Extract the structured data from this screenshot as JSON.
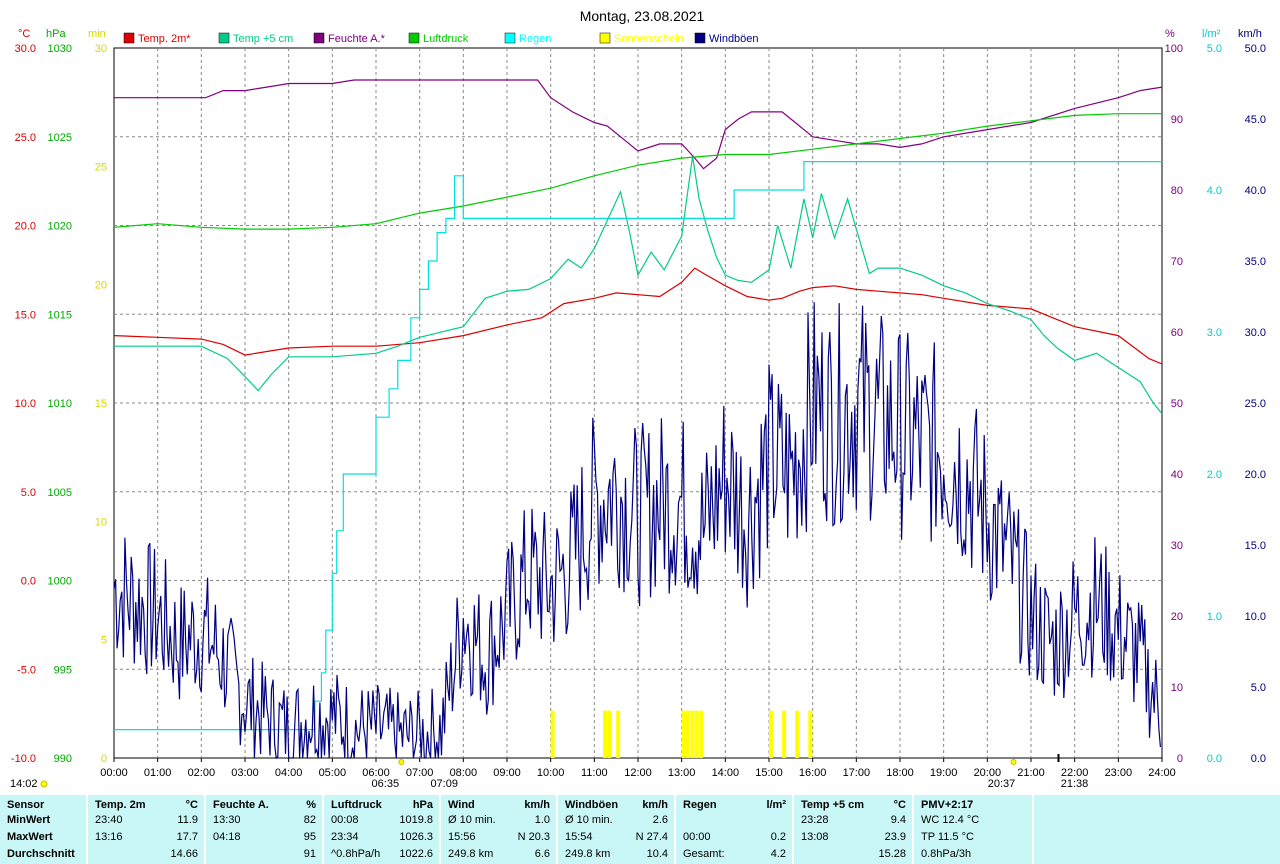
{
  "title": "Montag, 23.08.2021",
  "axes": {
    "temp": {
      "unit": "°C",
      "min": -10,
      "max": 30,
      "ticks": [
        "30.0",
        "25.0",
        "20.0",
        "15.0",
        "10.0",
        "5.0",
        "0.0",
        "-5.0",
        "-10.0"
      ],
      "color": "#ff0000"
    },
    "pressure": {
      "unit": "hPa",
      "min": 990,
      "max": 1030,
      "ticks": [
        "1030",
        "1025",
        "1020",
        "1015",
        "1010",
        "1005",
        "1000",
        "995",
        "990"
      ],
      "color": "#00aa00"
    },
    "sunshine": {
      "unit": "min",
      "min": 0,
      "max": 30,
      "ticks": [
        "30",
        "25",
        "20",
        "15",
        "10",
        "5",
        "0"
      ],
      "color": "#e0e000"
    },
    "humidity": {
      "unit": "%",
      "min": 0,
      "max": 100,
      "ticks": [
        "100",
        "90",
        "80",
        "70",
        "60",
        "50",
        "40",
        "30",
        "20",
        "10",
        "0"
      ],
      "color": "#800080"
    },
    "rain": {
      "unit": "l/m²",
      "min": 0,
      "max": 5,
      "ticks": [
        "5.0",
        "4.0",
        "3.0",
        "2.0",
        "1.0",
        "0.0"
      ],
      "color": "#00cccc"
    },
    "wind": {
      "unit": "km/h",
      "min": 0,
      "max": 50,
      "ticks": [
        "50.0",
        "45.0",
        "40.0",
        "35.0",
        "30.0",
        "25.0",
        "20.0",
        "15.0",
        "10.0",
        "5.0",
        "0.0"
      ],
      "color": "#000000"
    }
  },
  "x_ticks": [
    "00:00",
    "01:00",
    "02:00",
    "03:00",
    "04:00",
    "05:00",
    "06:00",
    "07:00",
    "08:00",
    "09:00",
    "10:00",
    "11:00",
    "12:00",
    "13:00",
    "14:00",
    "15:00",
    "16:00",
    "17:00",
    "18:00",
    "19:00",
    "20:00",
    "21:00",
    "22:00",
    "23:00",
    "24:00"
  ],
  "x_annotations": {
    "sunrise": "06:35",
    "sunrise_end": "07:09",
    "sunset": "20:37",
    "moon": "21:38",
    "moon_left": "14:02"
  },
  "legend": [
    {
      "label": "Temp. 2m*",
      "color": "#dd0000"
    },
    {
      "label": "Temp +5 cm",
      "color": "#00cc88"
    },
    {
      "label": "Feuchte A.*",
      "color": "#800080"
    },
    {
      "label": "Luftdruck",
      "color": "#00cc00"
    },
    {
      "label": "Regen",
      "color": "#00ffff"
    },
    {
      "label": "Sonnenschein",
      "color": "#ffff00"
    },
    {
      "label": "Windböen",
      "color": "#000080"
    }
  ],
  "chart_data": {
    "type": "line",
    "x_unit": "hours",
    "series": [
      {
        "name": "Temp. 2m*",
        "axis": "temp",
        "color": "#dd0000",
        "x": [
          0,
          1,
          2,
          2.5,
          3,
          3.5,
          4,
          5,
          6,
          7,
          8,
          9,
          9.8,
          10.3,
          11,
          11.5,
          12,
          12.5,
          13,
          13.3,
          13.5,
          14,
          14.5,
          15,
          15.3,
          15.7,
          16,
          16.5,
          17,
          17.5,
          18,
          18.5,
          19,
          20,
          21,
          21.5,
          22,
          23,
          23.7,
          24
        ],
        "y": [
          13.8,
          13.7,
          13.6,
          13.3,
          12.7,
          12.9,
          13.1,
          13.2,
          13.2,
          13.4,
          13.8,
          14.4,
          14.8,
          15.6,
          15.9,
          16.2,
          16.1,
          16.0,
          16.8,
          17.6,
          17.3,
          16.6,
          16.0,
          15.8,
          15.9,
          16.3,
          16.5,
          16.6,
          16.4,
          16.3,
          16.2,
          16.1,
          15.9,
          15.5,
          15.3,
          14.8,
          14.3,
          13.8,
          12.5,
          12.2
        ]
      },
      {
        "name": "Temp +5 cm",
        "axis": "temp",
        "color": "#00cc88",
        "x": [
          0,
          1,
          2,
          2.6,
          3,
          3.3,
          3.6,
          4,
          5,
          6,
          6.5,
          7,
          8,
          8.5,
          9,
          9.5,
          10,
          10.4,
          10.7,
          11,
          11.3,
          11.6,
          11.8,
          12,
          12.3,
          12.6,
          13,
          13.1,
          13.25,
          13.4,
          13.6,
          13.8,
          14,
          14.3,
          14.6,
          15,
          15.2,
          15.5,
          15.8,
          16,
          16.2,
          16.5,
          16.8,
          17,
          17.3,
          17.5,
          18,
          18.5,
          19,
          19.5,
          20,
          20.5,
          21,
          21.3,
          21.6,
          22,
          22.5,
          23,
          23.5,
          23.8,
          24
        ],
        "y": [
          13.2,
          13.2,
          13.2,
          12.5,
          11.5,
          10.7,
          11.6,
          12.6,
          12.6,
          12.8,
          13.2,
          13.7,
          14.3,
          15.9,
          16.3,
          16.4,
          17.0,
          18.1,
          17.6,
          18.7,
          20.3,
          21.9,
          19.7,
          17.2,
          18.5,
          17.5,
          19.4,
          21.2,
          23.9,
          21.5,
          19.7,
          18.2,
          17.2,
          16.9,
          16.8,
          17.5,
          20.0,
          17.6,
          21.5,
          19.3,
          21.8,
          19.3,
          21.5,
          19.8,
          17.3,
          17.6,
          17.6,
          17.2,
          16.6,
          16.2,
          15.6,
          15.2,
          14.7,
          13.8,
          13.1,
          12.4,
          12.8,
          12.0,
          11.2,
          10.0,
          9.4
        ]
      },
      {
        "name": "Feuchte A.*",
        "axis": "humidity",
        "color": "#800080",
        "x": [
          0,
          1.5,
          2.1,
          2.5,
          3,
          3.5,
          4,
          5,
          5.5,
          6,
          7,
          8,
          9,
          9.7,
          10,
          10.5,
          11,
          11.3,
          11.7,
          12,
          12.5,
          13,
          13.3,
          13.5,
          13.8,
          14,
          14.3,
          14.6,
          15,
          15.3,
          15.6,
          16,
          16.5,
          17,
          17.5,
          18,
          18.5,
          19,
          20,
          21,
          22,
          23,
          23.5,
          24
        ],
        "y": [
          93,
          93,
          93,
          94,
          94,
          94.5,
          95,
          95,
          95.5,
          95.5,
          95.5,
          95.5,
          95.5,
          95.5,
          93,
          91,
          89.5,
          89,
          87,
          85.5,
          86.5,
          86.5,
          84.5,
          83,
          84.5,
          88.5,
          90,
          91,
          91,
          91,
          89.5,
          87.5,
          87,
          86.5,
          86.5,
          86,
          86.5,
          87.5,
          88.5,
          89.5,
          91.5,
          93,
          94,
          94.5
        ]
      },
      {
        "name": "Luftdruck",
        "axis": "pressure",
        "color": "#00cc00",
        "x": [
          0,
          1,
          2,
          3,
          4,
          5,
          6,
          7,
          8,
          9,
          10,
          11,
          12,
          13,
          14,
          15,
          16,
          17,
          18,
          19,
          20,
          21,
          22,
          23,
          24
        ],
        "y": [
          1019.9,
          1020.1,
          1019.9,
          1019.8,
          1019.8,
          1019.9,
          1020.1,
          1020.7,
          1021.1,
          1021.6,
          1022.1,
          1022.8,
          1023.4,
          1023.8,
          1024.0,
          1024.0,
          1024.3,
          1024.6,
          1024.9,
          1025.2,
          1025.6,
          1025.9,
          1026.2,
          1026.3,
          1026.3
        ]
      },
      {
        "name": "Regen",
        "axis": "rain",
        "color": "#00e0e0",
        "step": true,
        "x": [
          0,
          4.6,
          4.75,
          4.85,
          5.0,
          5.1,
          5.25,
          5.5,
          5.8,
          6.0,
          6.3,
          6.5,
          6.8,
          7.0,
          7.2,
          7.4,
          7.6,
          7.8,
          8.0,
          8.3,
          8.5,
          9,
          10,
          11,
          12,
          13,
          14,
          14.2,
          14.5,
          15,
          15.5,
          15.8,
          16,
          17,
          18,
          19,
          20,
          21,
          22,
          23,
          24
        ],
        "y": [
          0.2,
          0.4,
          0.6,
          0.9,
          1.3,
          1.6,
          2.0,
          2.0,
          2.0,
          2.4,
          2.6,
          2.8,
          3.1,
          3.3,
          3.5,
          3.7,
          3.8,
          4.1,
          3.8,
          3.8,
          3.8,
          3.8,
          3.8,
          3.8,
          3.8,
          3.8,
          3.8,
          4.0,
          4.0,
          4.0,
          4.0,
          4.2,
          4.2,
          4.2,
          4.2,
          4.2,
          4.2,
          4.2,
          4.2,
          4.2,
          4.2
        ]
      },
      {
        "name": "Windböen",
        "axis": "wind",
        "color": "#000080",
        "noisy": true,
        "x": [
          0,
          0.5,
          1,
          1.5,
          2,
          2.5,
          3,
          3.5,
          4,
          4.5,
          5,
          5.5,
          6,
          6.5,
          7,
          7.5,
          8,
          8.5,
          9,
          9.5,
          10,
          10.5,
          11,
          11.5,
          12,
          12.5,
          13,
          13.5,
          14,
          14.5,
          15,
          15.5,
          16,
          16.5,
          17,
          17.5,
          18,
          18.5,
          19,
          19.5,
          20,
          20.5,
          21,
          21.5,
          22,
          22.5,
          23,
          23.5,
          24
        ],
        "y": [
          12,
          11,
          10,
          8,
          9,
          7,
          4,
          3,
          2,
          3,
          3,
          2,
          2,
          1.5,
          1.5,
          2,
          10,
          7,
          10,
          13,
          12,
          14,
          18,
          19,
          17,
          18,
          18,
          16,
          20,
          17,
          21,
          20,
          25,
          24,
          25,
          24,
          23,
          22,
          22,
          20,
          17,
          14,
          10,
          8,
          10,
          11,
          9,
          7,
          3
        ]
      },
      {
        "name": "Sonnenschein",
        "axis": "sunshine",
        "color": "#ffff00",
        "bars": true,
        "x": [
          10.0,
          11.2,
          11.3,
          11.5,
          13.0,
          13.1,
          13.2,
          13.3,
          13.4,
          15.0,
          15.3,
          15.6,
          15.9
        ],
        "y": [
          2,
          2,
          2,
          2,
          2,
          2,
          2,
          2,
          2,
          2,
          2,
          2,
          2
        ]
      }
    ]
  },
  "stats": {
    "headers": [
      {
        "label": "Sensor",
        "unit": ""
      },
      {
        "label": "Temp. 2m",
        "unit": "°C"
      },
      {
        "label": "Feuchte A.",
        "unit": "%"
      },
      {
        "label": "Luftdruck",
        "unit": "hPa"
      },
      {
        "label": "Wind",
        "unit": "km/h"
      },
      {
        "label": "Windböen",
        "unit": "km/h"
      },
      {
        "label": "Regen",
        "unit": "l/m²"
      },
      {
        "label": "Temp +5 cm",
        "unit": "°C"
      },
      {
        "label": "PMV+2:17",
        "unit": ""
      }
    ],
    "rows": [
      {
        "label": "MinWert",
        "temp2m": [
          "23:40",
          "11.9"
        ],
        "feuchte": [
          "13:30",
          "82"
        ],
        "luftdruck": [
          "00:08",
          "1019.8"
        ],
        "wind": [
          "Ø 10 min.",
          "1.0"
        ],
        "boeen": [
          "Ø 10 min.",
          "2.6"
        ],
        "regen": [
          "",
          ""
        ],
        "temp5": [
          "23:28",
          "9.4"
        ],
        "pmv": "WC 12.4 °C"
      },
      {
        "label": "MaxWert",
        "temp2m": [
          "13:16",
          "17.7"
        ],
        "feuchte": [
          "04:18",
          "95"
        ],
        "luftdruck": [
          "23:34",
          "1026.3"
        ],
        "wind": [
          "15:56",
          "N 20.3"
        ],
        "boeen": [
          "15:54",
          "N 27.4"
        ],
        "regen": [
          "00:00",
          "0.2"
        ],
        "temp5": [
          "13:08",
          "23.9"
        ],
        "pmv": "TP 11.5 °C"
      },
      {
        "label": "Durchschnitt",
        "temp2m": [
          "",
          "14.66"
        ],
        "feuchte": [
          "",
          "91"
        ],
        "luftdruck": [
          "^0.8hPa/h",
          "1022.6"
        ],
        "wind": [
          "249.8 km",
          "6.6"
        ],
        "boeen": [
          "249.8 km",
          "10.4"
        ],
        "regen": [
          "Gesamt:",
          "4.2"
        ],
        "temp5": [
          "",
          "15.28"
        ],
        "pmv": "0.8hPa/3h"
      }
    ]
  }
}
